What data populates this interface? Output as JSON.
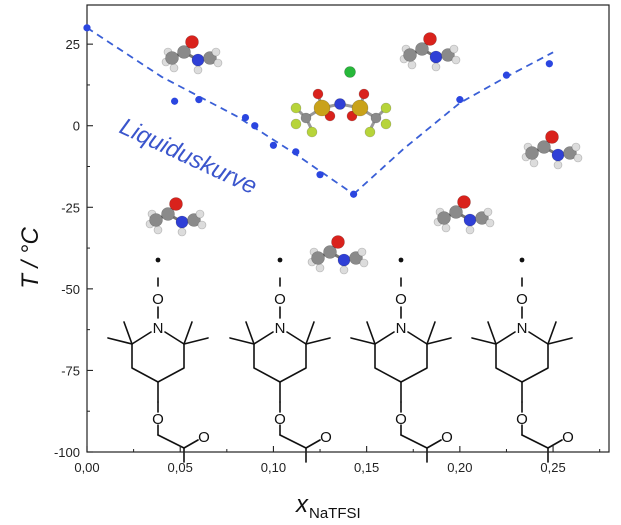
{
  "chart_data": {
    "type": "scatter",
    "xlabel_main": "x",
    "xlabel_sub": "NaTFSI",
    "ylabel": "T / °C",
    "xlim": [
      0.0,
      0.28
    ],
    "ylim": [
      -100,
      37
    ],
    "xticks": [
      0.0,
      0.05,
      0.1,
      0.15,
      0.2,
      0.25
    ],
    "xtick_labels": [
      "0,00",
      "0,05",
      "0,10",
      "0,15",
      "0,20",
      "0,25"
    ],
    "yticks": [
      25,
      0,
      -25,
      -50,
      -75,
      -100
    ],
    "ytick_labels": [
      "25",
      "0",
      "-25",
      "-50",
      "-75",
      "-100"
    ],
    "grid": false,
    "annotation": "Liquiduskurve",
    "series": [
      {
        "color": "#2b46e0",
        "marker": "circle",
        "points": [
          {
            "x": 0.0,
            "y": 30
          },
          {
            "x": 0.047,
            "y": 7.5
          },
          {
            "x": 0.06,
            "y": 8
          },
          {
            "x": 0.085,
            "y": 2.5
          },
          {
            "x": 0.09,
            "y": 0
          },
          {
            "x": 0.1,
            "y": -6
          },
          {
            "x": 0.112,
            "y": -8
          },
          {
            "x": 0.125,
            "y": -15
          },
          {
            "x": 0.143,
            "y": -21
          },
          {
            "x": 0.2,
            "y": 8
          },
          {
            "x": 0.225,
            "y": 15.5
          },
          {
            "x": 0.248,
            "y": 19
          }
        ]
      }
    ],
    "fit_lines": [
      {
        "style": "dashed",
        "color": "#3a5fd6",
        "points": [
          {
            "x": 0.0,
            "y": 30
          },
          {
            "x": 0.04,
            "y": 15
          },
          {
            "x": 0.08,
            "y": 3
          },
          {
            "x": 0.11,
            "y": -8
          },
          {
            "x": 0.143,
            "y": -21
          }
        ]
      },
      {
        "style": "dashed",
        "color": "#3a5fd6",
        "points": [
          {
            "x": 0.143,
            "y": -21
          },
          {
            "x": 0.17,
            "y": -7
          },
          {
            "x": 0.2,
            "y": 7
          },
          {
            "x": 0.225,
            "y": 15
          },
          {
            "x": 0.25,
            "y": 22.5
          }
        ]
      }
    ]
  },
  "structure_labels": {
    "nitrogen": "N",
    "oxygen": "O"
  }
}
